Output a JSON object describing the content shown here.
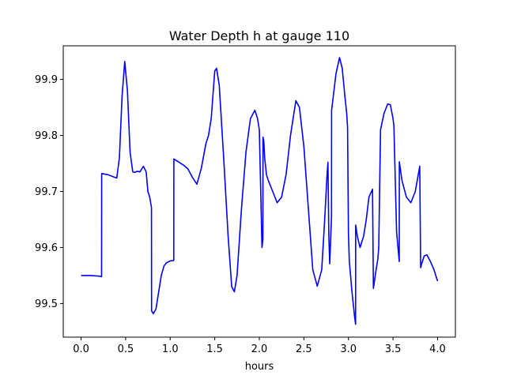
{
  "chart_data": {
    "type": "line",
    "title": "Water Depth h at gauge 110",
    "xlabel": "hours",
    "ylabel": "",
    "xlim": [
      -0.2,
      4.2
    ],
    "ylim": [
      99.44,
      99.96
    ],
    "xticks": [
      {
        "value": 0.0,
        "label": "0.0"
      },
      {
        "value": 0.5,
        "label": "0.5"
      },
      {
        "value": 1.0,
        "label": "1.0"
      },
      {
        "value": 1.5,
        "label": "1.5"
      },
      {
        "value": 2.0,
        "label": "2.0"
      },
      {
        "value": 2.5,
        "label": "2.5"
      },
      {
        "value": 3.0,
        "label": "3.0"
      },
      {
        "value": 3.5,
        "label": "3.5"
      },
      {
        "value": 4.0,
        "label": "4.0"
      }
    ],
    "yticks": [
      {
        "value": 99.5,
        "label": "99.5"
      },
      {
        "value": 99.6,
        "label": "99.6"
      },
      {
        "value": 99.7,
        "label": "99.7"
      },
      {
        "value": 99.8,
        "label": "99.8"
      },
      {
        "value": 99.9,
        "label": "99.9"
      }
    ],
    "grid": false,
    "colors": {
      "line": "#0000ff",
      "axes": "#000000",
      "background": "#ffffff"
    },
    "series": [
      {
        "x": [
          0.0,
          0.1,
          0.2,
          0.23,
          0.231,
          0.3,
          0.4,
          0.43,
          0.46,
          0.49,
          0.52,
          0.55,
          0.58,
          0.6,
          0.63,
          0.66,
          0.7,
          0.73,
          0.75,
          0.77,
          0.79,
          0.791,
          0.81,
          0.84,
          0.87,
          0.9,
          0.93,
          0.96,
          1.0,
          1.04,
          1.041,
          1.1,
          1.15,
          1.2,
          1.25,
          1.3,
          1.35,
          1.4,
          1.43,
          1.46,
          1.5,
          1.52,
          1.55,
          1.6,
          1.65,
          1.69,
          1.72,
          1.75,
          1.8,
          1.85,
          1.9,
          1.95,
          1.98,
          2.0,
          2.03,
          2.04,
          2.041,
          2.05,
          2.06,
          2.08,
          2.1,
          2.15,
          2.2,
          2.25,
          2.3,
          2.35,
          2.41,
          2.45,
          2.5,
          2.55,
          2.6,
          2.65,
          2.7,
          2.73,
          2.76,
          2.77,
          2.78,
          2.79,
          2.81,
          2.811,
          2.83,
          2.86,
          2.9,
          2.93,
          2.96,
          2.98,
          2.99,
          3.0,
          3.01,
          3.04,
          3.07,
          3.08,
          3.081,
          3.1,
          3.13,
          3.17,
          3.2,
          3.23,
          3.27,
          3.28,
          3.31,
          3.33,
          3.34,
          3.36,
          3.4,
          3.44,
          3.47,
          3.5,
          3.51,
          3.54,
          3.57,
          3.571,
          3.6,
          3.65,
          3.7,
          3.75,
          3.8,
          3.81,
          3.82,
          3.85,
          3.88,
          3.92,
          3.96,
          4.0
        ],
        "y": [
          99.55,
          99.55,
          99.549,
          99.548,
          99.732,
          99.73,
          99.724,
          99.76,
          99.87,
          99.932,
          99.88,
          99.77,
          99.735,
          99.734,
          99.736,
          99.735,
          99.745,
          99.735,
          99.7,
          99.69,
          99.671,
          99.487,
          99.482,
          99.49,
          99.52,
          99.55,
          99.567,
          99.573,
          99.576,
          99.577,
          99.758,
          99.752,
          99.747,
          99.74,
          99.725,
          99.713,
          99.742,
          99.785,
          99.8,
          99.83,
          99.915,
          99.92,
          99.89,
          99.76,
          99.62,
          99.53,
          99.521,
          99.55,
          99.67,
          99.77,
          99.83,
          99.845,
          99.83,
          99.81,
          99.6,
          99.615,
          99.797,
          99.79,
          99.76,
          99.73,
          99.72,
          99.7,
          99.68,
          99.69,
          99.73,
          99.8,
          99.862,
          99.85,
          99.78,
          99.67,
          99.56,
          99.531,
          99.56,
          99.64,
          99.73,
          99.752,
          99.62,
          99.571,
          99.655,
          99.845,
          99.87,
          99.91,
          99.939,
          99.92,
          99.87,
          99.84,
          99.815,
          99.625,
          99.575,
          99.52,
          99.475,
          99.463,
          99.64,
          99.62,
          99.6,
          99.62,
          99.65,
          99.69,
          99.704,
          99.527,
          99.56,
          99.58,
          99.6,
          99.81,
          99.84,
          99.856,
          99.855,
          99.83,
          99.817,
          99.628,
          99.575,
          99.753,
          99.72,
          99.69,
          99.68,
          99.7,
          99.745,
          99.564,
          99.57,
          99.585,
          99.587,
          99.575,
          99.56,
          99.54
        ]
      }
    ]
  }
}
